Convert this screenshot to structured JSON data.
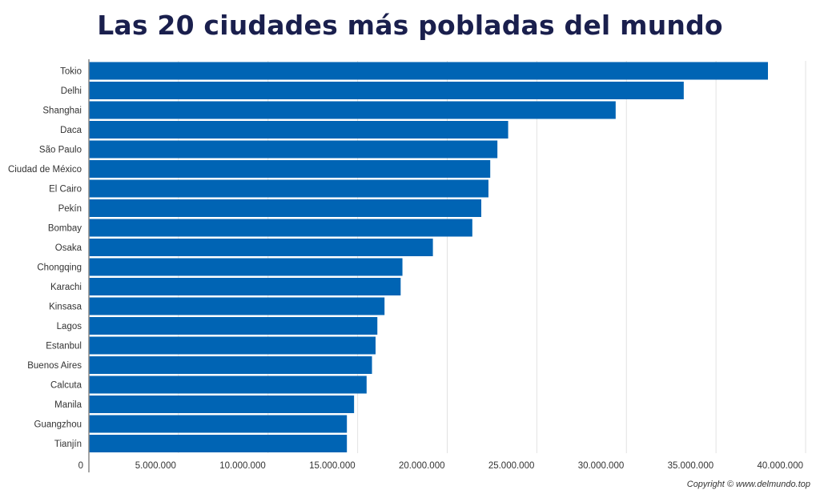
{
  "title": "Las 20 ciudades más pobladas del mundo",
  "copyright": "Copyright © www.delmundo.top",
  "colors": {
    "bar": "#0064b4",
    "title": "#1a1f4d",
    "grid": "#e2e2e2",
    "axis": "#888888"
  },
  "chart_data": {
    "type": "bar",
    "orientation": "horizontal",
    "title": "Las 20 ciudades más pobladas del mundo",
    "xlabel": "",
    "ylabel": "",
    "xlim": [
      0,
      40000000
    ],
    "grid": true,
    "categories": [
      "Tokio",
      "Delhi",
      "Shanghai",
      "Daca",
      "São Paulo",
      "Ciudad de México",
      "El Cairo",
      "Pekín",
      "Bombay",
      "Osaka",
      "Chongqing",
      "Karachi",
      "Kinsasa",
      "Lagos",
      "Estanbul",
      "Buenos Aires",
      "Calcuta",
      "Manila",
      "Guangzhou",
      "Tianjín"
    ],
    "values": [
      37900000,
      33200000,
      29400000,
      23400000,
      22800000,
      22400000,
      22300000,
      21900000,
      21400000,
      19200000,
      17500000,
      17400000,
      16500000,
      16100000,
      16000000,
      15800000,
      15500000,
      14800000,
      14400000,
      14400000
    ],
    "x_ticks": [
      0,
      5000000,
      10000000,
      15000000,
      20000000,
      25000000,
      30000000,
      35000000,
      40000000
    ],
    "x_tick_labels": [
      "0",
      "5.000.000",
      "10.000.000",
      "15.000.000",
      "20.000.000",
      "25.000.000",
      "30.000.000",
      "35.000.000",
      "40.000.000"
    ]
  }
}
